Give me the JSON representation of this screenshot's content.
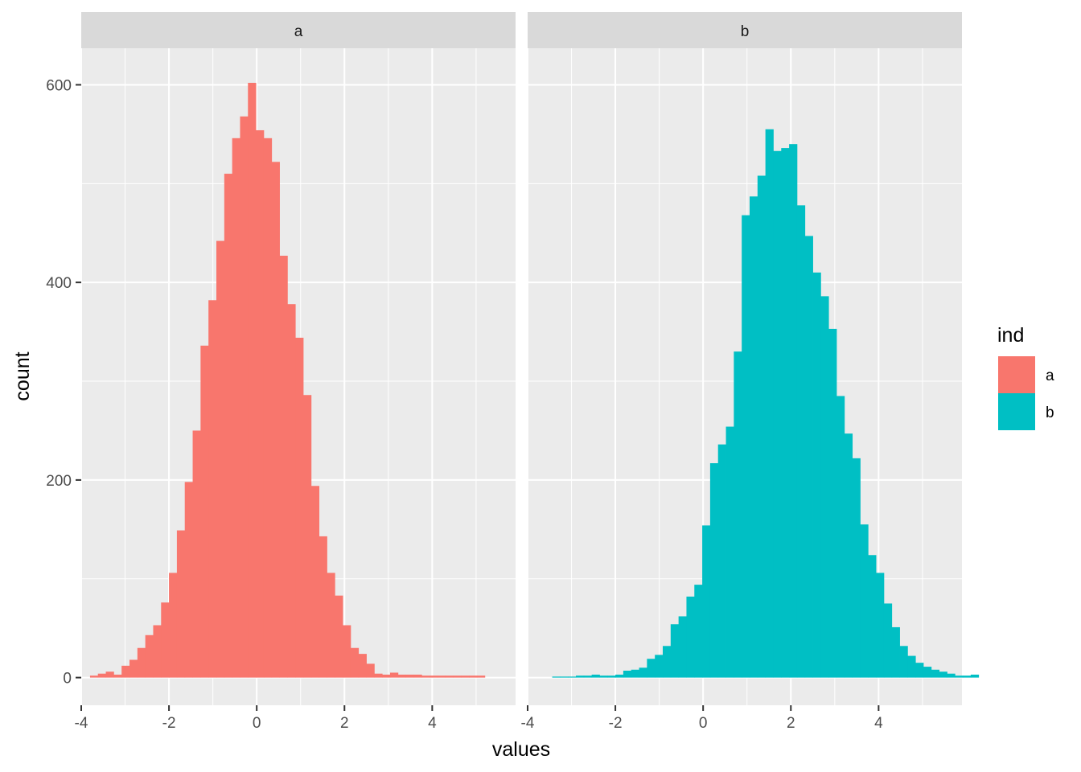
{
  "chart_data": {
    "type": "bar",
    "subtype": "faceted-histogram",
    "title": "",
    "xlabel": "values",
    "ylabel": "count",
    "xlim": [
      -4.0,
      5.9
    ],
    "ylim": [
      -28,
      637
    ],
    "x_ticks": [
      -4,
      -2,
      0,
      2,
      4
    ],
    "x_tick_labels": [
      "-4",
      "-2",
      "0",
      "2",
      "4"
    ],
    "y_ticks": [
      0,
      200,
      400,
      600
    ],
    "y_tick_labels": [
      "0",
      "200",
      "400",
      "600"
    ],
    "grid": true,
    "bin_width": 0.18,
    "bin_start": -3.8,
    "legend": {
      "title": "ind",
      "position": "right",
      "entries": [
        {
          "label": "a",
          "color": "#F8766D"
        },
        {
          "label": "b",
          "color": "#00BFC4"
        }
      ]
    },
    "facets": [
      {
        "label": "a",
        "color": "#F8766D",
        "counts": [
          2,
          4,
          6,
          3,
          12,
          18,
          30,
          43,
          53,
          76,
          106,
          149,
          198,
          250,
          336,
          382,
          442,
          510,
          546,
          568,
          602,
          554,
          546,
          522,
          427,
          378,
          344,
          286,
          194,
          143,
          106,
          83,
          53,
          30,
          24,
          14,
          4,
          3,
          5,
          3,
          3,
          3,
          2,
          2,
          2,
          2,
          2,
          2,
          2,
          2
        ]
      },
      {
        "label": "b",
        "color": "#00BFC4",
        "counts": [
          0,
          0,
          1,
          1,
          1,
          2,
          2,
          3,
          2,
          2,
          3,
          7,
          8,
          10,
          19,
          23,
          32,
          54,
          62,
          82,
          94,
          154,
          217,
          236,
          254,
          330,
          468,
          487,
          508,
          555,
          533,
          536,
          540,
          478,
          447,
          410,
          386,
          353,
          285,
          247,
          222,
          155,
          124,
          106,
          75,
          51,
          32,
          22,
          15,
          11,
          8,
          6,
          4,
          2,
          2,
          3
        ]
      }
    ]
  }
}
